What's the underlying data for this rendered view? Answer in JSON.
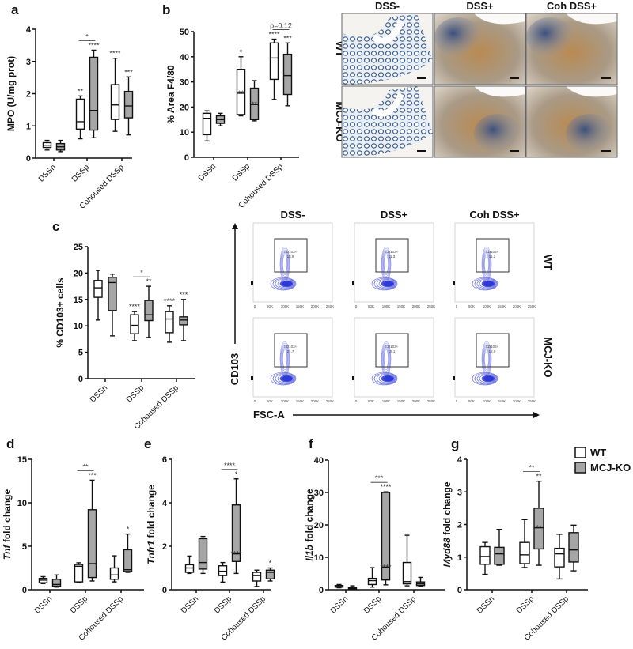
{
  "colors": {
    "wt_fill": "#ffffff",
    "ko_fill": "#a6a6a6",
    "stroke": "#111111",
    "flow_contour": "#2b35d6"
  },
  "legend": {
    "items": [
      {
        "label": "WT",
        "color": "#ffffff"
      },
      {
        "label": "MCJ-KO",
        "color": "#a6a6a6"
      }
    ]
  },
  "histology": {
    "panel_label": "b",
    "columns": [
      "DSS-",
      "DSS+",
      "Coh DSS+"
    ],
    "rows": [
      "WT",
      "MCJ-KO"
    ]
  },
  "flow": {
    "panel_label": "c",
    "columns": [
      "DSS-",
      "DSS+",
      "Coh DSS+"
    ],
    "rows": [
      "WT",
      "MCJ-KO"
    ],
    "y_axis": "CD103",
    "x_axis": "FSC-A",
    "gate_label": "CD103+",
    "x_ticks": [
      "0",
      "50K",
      "100K",
      "150K",
      "200K",
      "250K"
    ],
    "values": [
      [
        "18.9",
        "11.3",
        "11.2"
      ],
      [
        "21.7",
        "15.1",
        "12.0"
      ]
    ]
  },
  "chart_data": [
    {
      "panel": "a",
      "type": "box",
      "ylabel": "MPO (U/mg prot)",
      "ylabel_italic": "",
      "ylim": [
        0,
        4
      ],
      "yticks": [
        "0",
        "1",
        "2",
        "3",
        "4"
      ],
      "categories": [
        "DSSn",
        "DSSp",
        "Cohoused DSSp"
      ],
      "series": [
        {
          "name": "WT",
          "boxes": [
            [
              0.25,
              0.33,
              0.4,
              0.48,
              0.55
            ],
            [
              0.6,
              0.9,
              1.13,
              1.83,
              1.93
            ],
            [
              0.83,
              1.2,
              1.65,
              2.28,
              3.1
            ]
          ]
        },
        {
          "name": "MCJ-KO",
          "boxes": [
            [
              0.2,
              0.25,
              0.35,
              0.45,
              0.55
            ],
            [
              0.63,
              0.87,
              1.48,
              3.13,
              3.35
            ],
            [
              0.72,
              1.25,
              1.62,
              2.07,
              2.52
            ]
          ]
        }
      ],
      "annotations": [
        {
          "group": 1,
          "series": 0,
          "text": "**"
        },
        {
          "group": 1,
          "series": 1,
          "text": "****"
        },
        {
          "group": 2,
          "series": 0,
          "text": "****"
        },
        {
          "group": 2,
          "series": 1,
          "text": "***"
        }
      ],
      "brackets": [
        {
          "group": 1,
          "text": "*"
        }
      ]
    },
    {
      "panel": "b",
      "type": "box",
      "ylabel": "% Area F4/80",
      "ylabel_italic": "",
      "ylim": [
        0,
        50
      ],
      "yticks": [
        "0",
        "10",
        "20",
        "30",
        "40",
        "50"
      ],
      "categories": [
        "DSSn",
        "DSSp",
        "Cohoused DSSp"
      ],
      "series": [
        {
          "name": "WT",
          "boxes": [
            [
              6.5,
              9,
              15.5,
              17.5,
              18.5
            ],
            [
              16.5,
              17,
              25.5,
              35,
              40
            ],
            [
              23,
              31,
              39.5,
              45.5,
              47
            ]
          ]
        },
        {
          "name": "MCJ-KO",
          "boxes": [
            [
              12.5,
              13.5,
              15,
              16.5,
              17.5
            ],
            [
              14.5,
              15,
              21,
              27.5,
              30.5
            ],
            [
              20.5,
              25,
              32.5,
              41,
              45.5
            ]
          ]
        }
      ],
      "annotations": [
        {
          "group": 1,
          "series": 0,
          "text": "*"
        },
        {
          "group": 1,
          "series": 0,
          "text": "**",
          "at": "median"
        },
        {
          "group": 1,
          "series": 1,
          "text": "**",
          "at": "median"
        },
        {
          "group": 2,
          "series": 0,
          "text": "****"
        },
        {
          "group": 2,
          "series": 1,
          "text": "***"
        }
      ],
      "brackets": [
        {
          "group": 2,
          "text": "p=0.12"
        }
      ]
    },
    {
      "panel": "c",
      "type": "box",
      "ylabel": "% CD103+ cells",
      "ylabel_italic": "",
      "ylim": [
        0,
        25
      ],
      "yticks": [
        "0",
        "5",
        "10",
        "15",
        "20",
        "25"
      ],
      "categories": [
        "DSSn",
        "DSSp",
        "Cohoused DSSp"
      ],
      "series": [
        {
          "name": "WT",
          "boxes": [
            [
              11.1,
              15.4,
              17.2,
              18.6,
              20.5
            ],
            [
              7.2,
              8.5,
              10.1,
              12.1,
              12.7
            ],
            [
              6.9,
              8.7,
              11.3,
              12.7,
              13.8
            ]
          ]
        },
        {
          "name": "MCJ-KO",
          "boxes": [
            [
              8.1,
              12.9,
              18.2,
              19.2,
              19.8
            ],
            [
              7.8,
              11,
              12.1,
              14.8,
              17.5
            ],
            [
              7.2,
              10.2,
              11.1,
              11.7,
              15
            ]
          ]
        }
      ],
      "annotations": [
        {
          "group": 1,
          "series": 0,
          "text": "****"
        },
        {
          "group": 1,
          "series": 1,
          "text": "**"
        },
        {
          "group": 2,
          "series": 0,
          "text": "****"
        },
        {
          "group": 2,
          "series": 1,
          "text": "***"
        }
      ],
      "brackets": [
        {
          "group": 1,
          "text": "*"
        }
      ]
    },
    {
      "panel": "d",
      "type": "box",
      "ylabel": " fold change",
      "ylabel_italic": "Tnf",
      "ylim": [
        0,
        15
      ],
      "yticks": [
        "0",
        "5",
        "10",
        "15"
      ],
      "categories": [
        "DSSn",
        "DSSp",
        "Cohoused DSSp"
      ],
      "series": [
        {
          "name": "WT",
          "boxes": [
            [
              0.7,
              0.8,
              1.1,
              1.3,
              1.5
            ],
            [
              0.8,
              0.9,
              2.7,
              2.9,
              3.1
            ],
            [
              0.9,
              1.2,
              1.7,
              2.5,
              3.9
            ]
          ]
        },
        {
          "name": "MCJ-KO",
          "boxes": [
            [
              0.3,
              0.4,
              0.6,
              1.2,
              1.7
            ],
            [
              1,
              1.4,
              3,
              9.2,
              12.6
            ],
            [
              2,
              2.1,
              2.3,
              4.6,
              6.4
            ]
          ]
        }
      ],
      "annotations": [
        {
          "group": 1,
          "series": 1,
          "text": "***"
        },
        {
          "group": 2,
          "series": 1,
          "text": "*"
        }
      ],
      "brackets": [
        {
          "group": 1,
          "text": "**"
        }
      ]
    },
    {
      "panel": "e",
      "type": "box",
      "ylabel": " fold change",
      "ylabel_italic": "Tnfr1",
      "ylim": [
        0,
        6
      ],
      "yticks": [
        "0",
        "2",
        "4",
        "6"
      ],
      "categories": [
        "DSSn",
        "DSSp",
        "Cohoused DSSp"
      ],
      "series": [
        {
          "name": "WT",
          "boxes": [
            [
              0.75,
              0.8,
              1.0,
              1.15,
              1.55
            ],
            [
              0.35,
              0.65,
              0.85,
              1.1,
              1.25
            ],
            [
              0.15,
              0.4,
              0.65,
              0.8,
              0.9
            ]
          ]
        },
        {
          "name": "MCJ-KO",
          "boxes": [
            [
              0.75,
              0.95,
              1.25,
              2.35,
              2.45
            ],
            [
              0.75,
              1.3,
              1.65,
              3.9,
              5.1
            ],
            [
              0.4,
              0.5,
              0.8,
              0.9,
              1.0
            ]
          ]
        }
      ],
      "annotations": [
        {
          "group": 1,
          "series": 1,
          "text": "*"
        },
        {
          "group": 1,
          "series": 1,
          "text": "****",
          "at": "median"
        },
        {
          "group": 2,
          "series": 1,
          "text": "*"
        }
      ],
      "brackets": [
        {
          "group": 1,
          "text": "****"
        }
      ]
    },
    {
      "panel": "f",
      "type": "box",
      "ylabel": " fold change",
      "ylabel_italic": "Il1b",
      "ylim": [
        0,
        40
      ],
      "yticks": [
        "0",
        "10",
        "20",
        "30",
        "40"
      ],
      "categories": [
        "DSSn",
        "DSSp",
        "Cohoused DSSp"
      ],
      "series": [
        {
          "name": "WT",
          "boxes": [
            [
              0.6,
              0.8,
              1.0,
              1.3,
              1.6
            ],
            [
              0.8,
              1.6,
              2.8,
              3.5,
              6.8
            ],
            [
              1.2,
              1.8,
              2.5,
              8.4,
              16.8
            ]
          ]
        },
        {
          "name": "MCJ-KO",
          "boxes": [
            [
              0.2,
              0.3,
              0.5,
              0.8,
              1.2
            ],
            [
              1.5,
              3,
              7,
              30,
              30.2
            ],
            [
              1,
              1.3,
              1.8,
              2.4,
              3.8
            ]
          ]
        }
      ],
      "annotations": [
        {
          "group": 1,
          "series": 1,
          "text": "****"
        },
        {
          "group": 1,
          "series": 1,
          "text": "****",
          "at": "median"
        }
      ],
      "brackets": [
        {
          "group": 1,
          "text": "***"
        }
      ]
    },
    {
      "panel": "g",
      "type": "box",
      "ylabel": " fold change",
      "ylabel_italic": "Myd88",
      "ylim": [
        0,
        4
      ],
      "yticks": [
        "0",
        "1",
        "2",
        "3",
        "4"
      ],
      "categories": [
        "DSSn",
        "DSSp",
        "Cohoused DSSp"
      ],
      "series": [
        {
          "name": "WT",
          "boxes": [
            [
              0.47,
              0.78,
              1.02,
              1.32,
              1.45
            ],
            [
              0.68,
              0.8,
              1.07,
              1.45,
              2.15
            ],
            [
              0.33,
              0.7,
              1.1,
              1.27,
              1.7
            ]
          ]
        },
        {
          "name": "MCJ-KO",
          "boxes": [
            [
              0.75,
              0.78,
              1.1,
              1.3,
              1.85
            ],
            [
              0.75,
              1.25,
              1.9,
              2.5,
              3.33
            ],
            [
              0.58,
              0.85,
              1.22,
              1.75,
              1.98
            ]
          ]
        }
      ],
      "annotations": [
        {
          "group": 1,
          "series": 1,
          "text": "**"
        },
        {
          "group": 1,
          "series": 1,
          "text": "**",
          "at": "median"
        }
      ],
      "brackets": [
        {
          "group": 1,
          "text": "**"
        }
      ]
    }
  ]
}
